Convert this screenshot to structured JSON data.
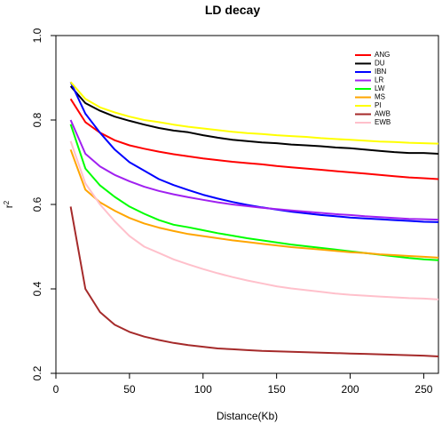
{
  "chart_data": {
    "type": "line",
    "title": "LD decay",
    "xlabel": "Distance(Kb)",
    "ylabel_main": "r",
    "ylabel_sup": "2",
    "xlim": [
      0,
      260
    ],
    "ylim": [
      0.2,
      1.0
    ],
    "xticks": [
      0,
      50,
      100,
      150,
      200,
      250
    ],
    "yticks": [
      0.2,
      0.4,
      0.6,
      0.8,
      1.0
    ],
    "xtick_labels": [
      "0",
      "50",
      "100",
      "150",
      "200",
      "250"
    ],
    "ytick_labels": [
      "0.2",
      "0.4",
      "0.6",
      "0.8",
      "1.0"
    ],
    "grid": false,
    "legend_position": "top-right",
    "x": [
      10,
      20,
      30,
      40,
      50,
      60,
      70,
      80,
      90,
      100,
      110,
      120,
      130,
      140,
      150,
      160,
      170,
      180,
      190,
      200,
      210,
      220,
      230,
      240,
      250,
      260
    ],
    "series": [
      {
        "name": "ANG",
        "color": "#ff0000",
        "values": [
          0.85,
          0.795,
          0.77,
          0.752,
          0.74,
          0.732,
          0.725,
          0.719,
          0.714,
          0.709,
          0.705,
          0.701,
          0.698,
          0.695,
          0.691,
          0.688,
          0.685,
          0.682,
          0.679,
          0.676,
          0.673,
          0.67,
          0.667,
          0.664,
          0.662,
          0.66
        ]
      },
      {
        "name": "DU",
        "color": "#000000",
        "values": [
          0.88,
          0.84,
          0.822,
          0.808,
          0.798,
          0.789,
          0.781,
          0.775,
          0.771,
          0.764,
          0.758,
          0.753,
          0.75,
          0.747,
          0.745,
          0.742,
          0.74,
          0.738,
          0.735,
          0.733,
          0.73,
          0.727,
          0.724,
          0.722,
          0.722,
          0.72
        ]
      },
      {
        "name": "IBN",
        "color": "#0000ff",
        "values": [
          0.89,
          0.815,
          0.77,
          0.73,
          0.7,
          0.68,
          0.66,
          0.646,
          0.634,
          0.623,
          0.614,
          0.606,
          0.599,
          0.593,
          0.588,
          0.583,
          0.579,
          0.575,
          0.572,
          0.569,
          0.567,
          0.565,
          0.563,
          0.561,
          0.559,
          0.558
        ]
      },
      {
        "name": "LR",
        "color": "#a020f0",
        "values": [
          0.8,
          0.72,
          0.69,
          0.67,
          0.655,
          0.642,
          0.632,
          0.624,
          0.617,
          0.611,
          0.605,
          0.6,
          0.596,
          0.592,
          0.589,
          0.586,
          0.583,
          0.58,
          0.577,
          0.575,
          0.572,
          0.57,
          0.568,
          0.566,
          0.565,
          0.564
        ]
      },
      {
        "name": "LW",
        "color": "#00ff00",
        "values": [
          0.79,
          0.685,
          0.645,
          0.618,
          0.595,
          0.578,
          0.563,
          0.552,
          0.546,
          0.539,
          0.532,
          0.526,
          0.52,
          0.515,
          0.51,
          0.505,
          0.501,
          0.497,
          0.493,
          0.489,
          0.485,
          0.481,
          0.477,
          0.473,
          0.47,
          0.468
        ]
      },
      {
        "name": "MS",
        "color": "#ffa500",
        "values": [
          0.73,
          0.635,
          0.605,
          0.585,
          0.568,
          0.555,
          0.545,
          0.537,
          0.53,
          0.525,
          0.52,
          0.515,
          0.511,
          0.507,
          0.503,
          0.499,
          0.496,
          0.493,
          0.49,
          0.487,
          0.485,
          0.482,
          0.48,
          0.478,
          0.476,
          0.474
        ]
      },
      {
        "name": "PI",
        "color": "#ffff00",
        "values": [
          0.89,
          0.85,
          0.83,
          0.818,
          0.808,
          0.8,
          0.795,
          0.789,
          0.784,
          0.78,
          0.776,
          0.772,
          0.769,
          0.767,
          0.764,
          0.762,
          0.76,
          0.757,
          0.755,
          0.753,
          0.751,
          0.749,
          0.748,
          0.746,
          0.745,
          0.744
        ]
      },
      {
        "name": "AWB",
        "color": "#a52a2a",
        "values": [
          0.595,
          0.4,
          0.345,
          0.315,
          0.298,
          0.287,
          0.279,
          0.272,
          0.267,
          0.263,
          0.259,
          0.257,
          0.255,
          0.253,
          0.252,
          0.251,
          0.25,
          0.249,
          0.248,
          0.247,
          0.246,
          0.245,
          0.244,
          0.243,
          0.242,
          0.24
        ]
      },
      {
        "name": "EWB",
        "color": "#ffc0cb",
        "values": [
          0.75,
          0.65,
          0.6,
          0.56,
          0.525,
          0.5,
          0.485,
          0.47,
          0.458,
          0.447,
          0.437,
          0.428,
          0.42,
          0.413,
          0.406,
          0.401,
          0.397,
          0.393,
          0.389,
          0.386,
          0.384,
          0.382,
          0.38,
          0.378,
          0.377,
          0.375
        ]
      }
    ]
  }
}
